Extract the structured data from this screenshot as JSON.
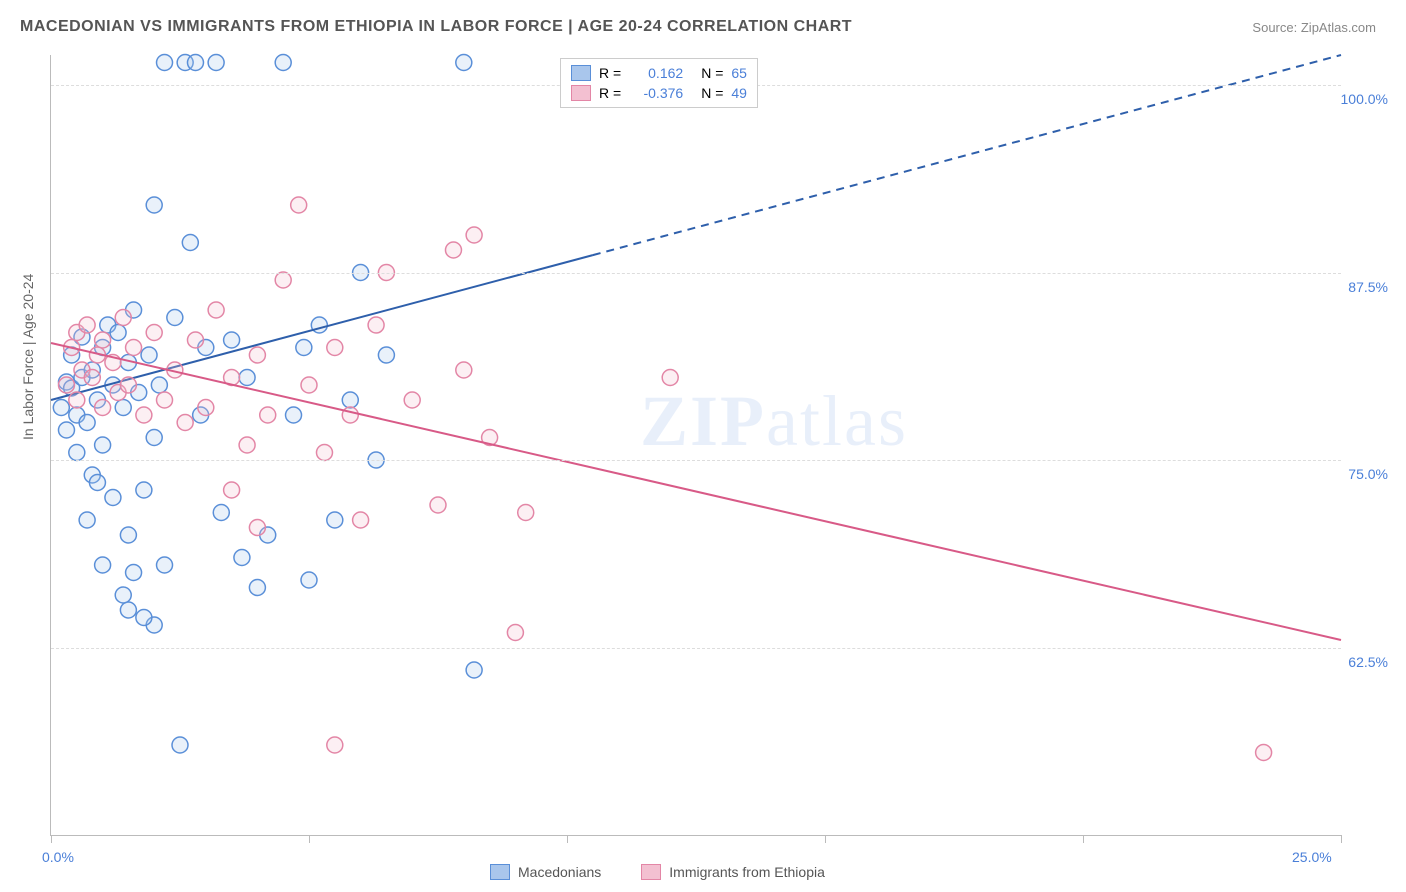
{
  "title": "MACEDONIAN VS IMMIGRANTS FROM ETHIOPIA IN LABOR FORCE | AGE 20-24 CORRELATION CHART",
  "source_label": "Source:",
  "source_value": "ZipAtlas.com",
  "ylabel": "In Labor Force | Age 20-24",
  "watermark": "ZIPatlas",
  "chart": {
    "type": "scatter",
    "xlim": [
      0,
      25
    ],
    "ylim": [
      50,
      102
    ],
    "xtick_positions": [
      0,
      5,
      10,
      15,
      20,
      25
    ],
    "xtick_labels": {
      "0": "0.0%",
      "25": "25.0%"
    },
    "ytick_positions": [
      62.5,
      75.0,
      87.5,
      100.0
    ],
    "ytick_labels": [
      "62.5%",
      "75.0%",
      "87.5%",
      "100.0%"
    ],
    "background_color": "#ffffff",
    "grid_color": "#dddddd",
    "axis_color": "#bbbbbb",
    "marker_radius": 8,
    "marker_stroke_width": 1.5,
    "marker_fill_opacity": 0.25,
    "series": [
      {
        "name": "Macedonians",
        "color_stroke": "#5a8fd8",
        "color_fill": "#a9c6ec",
        "R": "0.162",
        "N": "65",
        "trend": {
          "x0": 0,
          "y0": 79.0,
          "x1": 25,
          "y1": 102.0,
          "solid_until_x": 10.5,
          "color": "#2e5fab",
          "width": 2
        },
        "points": [
          [
            0.2,
            78.5
          ],
          [
            0.3,
            80.2
          ],
          [
            0.3,
            77.0
          ],
          [
            0.4,
            79.8
          ],
          [
            0.4,
            82.0
          ],
          [
            0.5,
            78.0
          ],
          [
            0.5,
            75.5
          ],
          [
            0.6,
            80.5
          ],
          [
            0.6,
            83.2
          ],
          [
            0.7,
            77.5
          ],
          [
            0.8,
            81.0
          ],
          [
            0.8,
            74.0
          ],
          [
            0.9,
            79.0
          ],
          [
            1.0,
            82.5
          ],
          [
            1.0,
            76.0
          ],
          [
            1.1,
            84.0
          ],
          [
            1.2,
            80.0
          ],
          [
            1.2,
            72.5
          ],
          [
            1.3,
            83.5
          ],
          [
            1.4,
            78.5
          ],
          [
            1.5,
            81.5
          ],
          [
            1.5,
            70.0
          ],
          [
            1.6,
            85.0
          ],
          [
            1.7,
            79.5
          ],
          [
            1.8,
            73.0
          ],
          [
            1.9,
            82.0
          ],
          [
            2.0,
            76.5
          ],
          [
            2.0,
            92.0
          ],
          [
            2.1,
            80.0
          ],
          [
            2.2,
            101.5
          ],
          [
            2.2,
            68.0
          ],
          [
            2.4,
            84.5
          ],
          [
            2.6,
            101.5
          ],
          [
            2.7,
            89.5
          ],
          [
            2.8,
            101.5
          ],
          [
            2.9,
            78.0
          ],
          [
            3.0,
            82.5
          ],
          [
            3.2,
            101.5
          ],
          [
            3.3,
            71.5
          ],
          [
            3.5,
            83.0
          ],
          [
            3.7,
            68.5
          ],
          [
            3.8,
            80.5
          ],
          [
            4.0,
            66.5
          ],
          [
            4.2,
            70.0
          ],
          [
            4.5,
            101.5
          ],
          [
            4.7,
            78.0
          ],
          [
            4.9,
            82.5
          ],
          [
            5.0,
            67.0
          ],
          [
            5.2,
            84.0
          ],
          [
            5.5,
            71.0
          ],
          [
            5.8,
            79.0
          ],
          [
            6.0,
            87.5
          ],
          [
            6.3,
            75.0
          ],
          [
            6.5,
            82.0
          ],
          [
            1.5,
            65.0
          ],
          [
            2.0,
            64.0
          ],
          [
            1.8,
            64.5
          ],
          [
            8.0,
            101.5
          ],
          [
            8.2,
            61.0
          ],
          [
            2.5,
            56.0
          ],
          [
            1.4,
            66.0
          ],
          [
            1.0,
            68.0
          ],
          [
            0.7,
            71.0
          ],
          [
            0.9,
            73.5
          ],
          [
            1.6,
            67.5
          ]
        ]
      },
      {
        "name": "Immigrants from Ethiopia",
        "color_stroke": "#e386a6",
        "color_fill": "#f3c0d1",
        "R": "-0.376",
        "N": "49",
        "trend": {
          "x0": 0,
          "y0": 82.8,
          "x1": 25,
          "y1": 63.0,
          "solid_until_x": 25,
          "color": "#d85a87",
          "width": 2
        },
        "points": [
          [
            0.3,
            80.0
          ],
          [
            0.4,
            82.5
          ],
          [
            0.5,
            79.0
          ],
          [
            0.5,
            83.5
          ],
          [
            0.6,
            81.0
          ],
          [
            0.7,
            84.0
          ],
          [
            0.8,
            80.5
          ],
          [
            0.9,
            82.0
          ],
          [
            1.0,
            78.5
          ],
          [
            1.0,
            83.0
          ],
          [
            1.2,
            81.5
          ],
          [
            1.3,
            79.5
          ],
          [
            1.4,
            84.5
          ],
          [
            1.5,
            80.0
          ],
          [
            1.6,
            82.5
          ],
          [
            1.8,
            78.0
          ],
          [
            2.0,
            83.5
          ],
          [
            2.2,
            79.0
          ],
          [
            2.4,
            81.0
          ],
          [
            2.6,
            77.5
          ],
          [
            2.8,
            83.0
          ],
          [
            3.0,
            78.5
          ],
          [
            3.2,
            85.0
          ],
          [
            3.5,
            80.5
          ],
          [
            3.8,
            76.0
          ],
          [
            4.0,
            82.0
          ],
          [
            4.2,
            78.0
          ],
          [
            4.5,
            87.0
          ],
          [
            4.8,
            92.0
          ],
          [
            5.0,
            80.0
          ],
          [
            5.3,
            75.5
          ],
          [
            5.5,
            82.5
          ],
          [
            5.8,
            78.0
          ],
          [
            6.0,
            71.0
          ],
          [
            6.3,
            84.0
          ],
          [
            6.5,
            87.5
          ],
          [
            7.0,
            79.0
          ],
          [
            7.5,
            72.0
          ],
          [
            8.0,
            81.0
          ],
          [
            8.2,
            90.0
          ],
          [
            8.5,
            76.5
          ],
          [
            9.0,
            63.5
          ],
          [
            9.2,
            71.5
          ],
          [
            5.5,
            56.0
          ],
          [
            12.0,
            80.5
          ],
          [
            7.8,
            89.0
          ],
          [
            3.5,
            73.0
          ],
          [
            4.0,
            70.5
          ],
          [
            23.5,
            55.5
          ]
        ]
      }
    ]
  },
  "legend_top": {
    "R_label": "R  =",
    "N_label": "N  ="
  },
  "legend_bottom": {
    "series1": "Macedonians",
    "series2": "Immigrants from Ethiopia"
  },
  "colors": {
    "title": "#555555",
    "tick_label": "#4a7fd8",
    "axis_label": "#666666"
  }
}
